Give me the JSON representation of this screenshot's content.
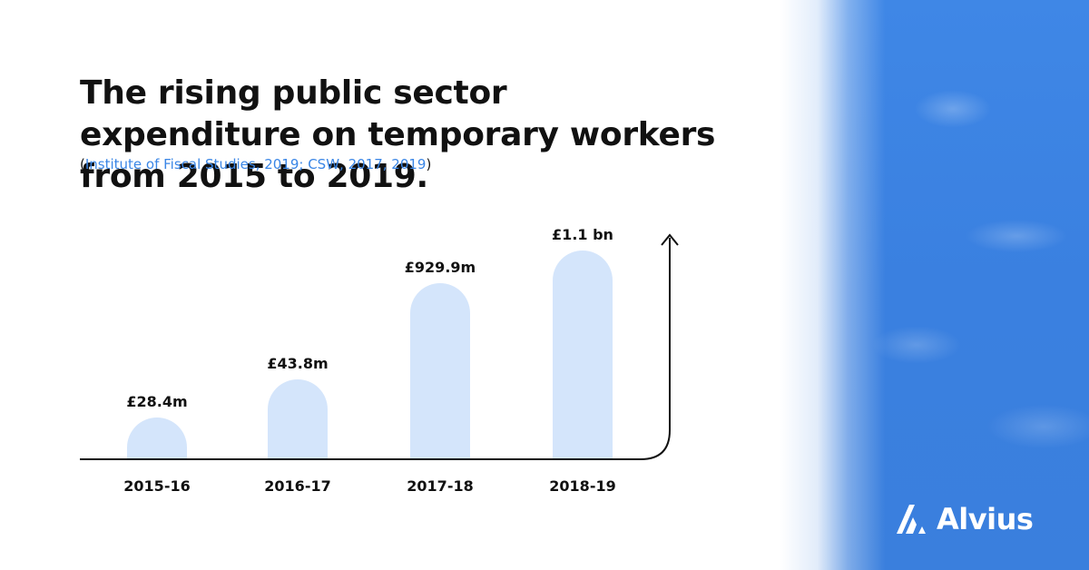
{
  "header": {
    "title": "The rising public sector expenditure on temporary workers from 2015 to 2019.",
    "source_open": "(",
    "source_text": "Institute of Fiscal Studies, 2019; CSW, 2017, 2019",
    "source_close": ")"
  },
  "brand": {
    "name": "Alvius",
    "accent_color": "#3a86e6",
    "bar_color": "#d4e5fb"
  },
  "chart_data": {
    "type": "bar",
    "title": "The rising public sector expenditure on temporary workers from 2015 to 2019.",
    "categories": [
      "2015-16",
      "2016-17",
      "2017-18",
      "2018-19"
    ],
    "values": [
      28.4,
      43.8,
      929.9,
      1100
    ],
    "value_labels": [
      "£28.4m",
      "£43.8m",
      "£929.9m",
      "£1.1 bn"
    ],
    "unit": "£m",
    "xlabel": "",
    "ylabel": "",
    "grid": false,
    "legend": "none",
    "note": "bars not drawn to scale"
  }
}
